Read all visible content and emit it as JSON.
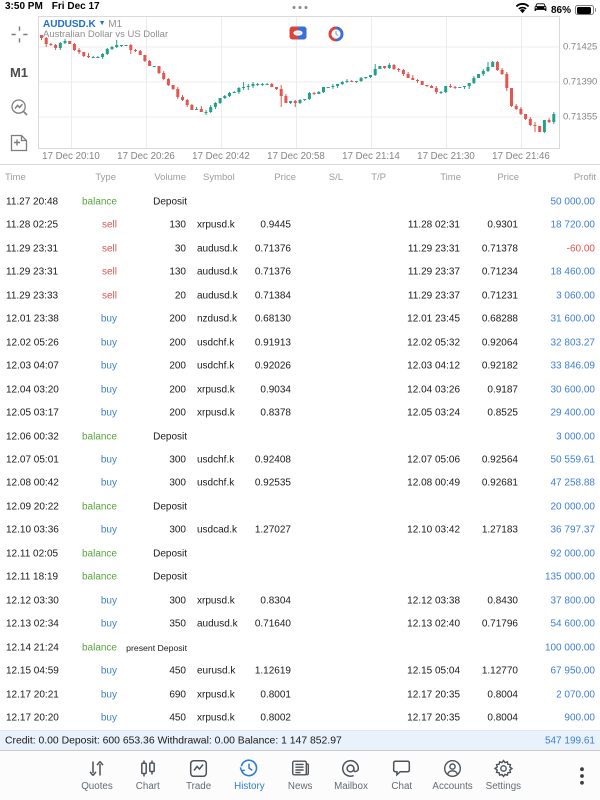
{
  "status_bar": {
    "time": "3:50 PM",
    "date": "Fri Dec 17",
    "battery_percent": "86%",
    "icons": [
      "wifi-icon",
      "carplay-icon",
      "battery-icon"
    ]
  },
  "chart": {
    "symbol": "AUDUSD.K",
    "timeframe": "M1",
    "description": "Australian Dollar vs US Dollar",
    "toolbar": [
      "crosshair-icon",
      "timeframe-M1",
      "indicators-icon",
      "add-object-icon"
    ],
    "accent_up": "#23a08c",
    "accent_down": "#e4554e"
  },
  "chart_data": {
    "type": "candlestick",
    "title": "AUDUSD.K M1",
    "ylabel_ticks": [
      "0.71425",
      "0.71390",
      "0.71355"
    ],
    "y_tick_values": [
      0.71425,
      0.7139,
      0.71355
    ],
    "x_tick_labels": [
      "17 Dec 20:10",
      "17 Dec 20:26",
      "17 Dec 20:42",
      "17 Dec 20:58",
      "17 Dec 21:14",
      "17 Dec 21:30",
      "17 Dec 21:46"
    ],
    "ylim": [
      0.71322,
      0.71456
    ],
    "grid": true,
    "candles_ohlc": [
      [
        0.71437,
        0.71437,
        0.71432,
        0.71434
      ],
      [
        0.71434,
        0.71435,
        0.71425,
        0.71428
      ],
      [
        0.71428,
        0.71429,
        0.71426,
        0.71427
      ],
      [
        0.71427,
        0.71428,
        0.71422,
        0.71424
      ],
      [
        0.71424,
        0.7143,
        0.71422,
        0.71429
      ],
      [
        0.71429,
        0.71433,
        0.71428,
        0.71431
      ],
      [
        0.71431,
        0.71431,
        0.71428,
        0.71428
      ],
      [
        0.71428,
        0.71429,
        0.71421,
        0.71422
      ],
      [
        0.71422,
        0.71424,
        0.71418,
        0.7142
      ],
      [
        0.7142,
        0.7142,
        0.71415,
        0.71416
      ],
      [
        0.71416,
        0.71419,
        0.71414,
        0.71415
      ],
      [
        0.71415,
        0.71416,
        0.71415,
        0.71415
      ],
      [
        0.71415,
        0.71416,
        0.71415,
        0.71415
      ],
      [
        0.71415,
        0.71419,
        0.71413,
        0.71418
      ],
      [
        0.71418,
        0.71424,
        0.71417,
        0.71423
      ],
      [
        0.71423,
        0.71426,
        0.71422,
        0.71425
      ],
      [
        0.71425,
        0.71432,
        0.71424,
        0.71427
      ],
      [
        0.71427,
        0.71427,
        0.71425,
        0.71427
      ],
      [
        0.71427,
        0.71427,
        0.71426,
        0.71427
      ],
      [
        0.71427,
        0.71428,
        0.71418,
        0.71422
      ],
      [
        0.71422,
        0.71423,
        0.7142,
        0.71421
      ],
      [
        0.71421,
        0.71422,
        0.71417,
        0.71417
      ],
      [
        0.71417,
        0.71417,
        0.7141,
        0.71411
      ],
      [
        0.71411,
        0.71412,
        0.71406,
        0.71406
      ],
      [
        0.71406,
        0.71406,
        0.71405,
        0.71406
      ],
      [
        0.71406,
        0.71406,
        0.71398,
        0.71399
      ],
      [
        0.71399,
        0.71401,
        0.71392,
        0.71393
      ],
      [
        0.71393,
        0.71394,
        0.71386,
        0.71387
      ],
      [
        0.71387,
        0.71387,
        0.71382,
        0.71383
      ],
      [
        0.71383,
        0.71385,
        0.71373,
        0.71375
      ],
      [
        0.71375,
        0.71377,
        0.71371,
        0.71372
      ],
      [
        0.71372,
        0.71373,
        0.71365,
        0.71367
      ],
      [
        0.71367,
        0.71368,
        0.71362,
        0.71362
      ],
      [
        0.71362,
        0.71365,
        0.71362,
        0.71363
      ],
      [
        0.71363,
        0.71366,
        0.7136,
        0.7136
      ],
      [
        0.7136,
        0.71362,
        0.71357,
        0.7136
      ],
      [
        0.7136,
        0.71367,
        0.71359,
        0.71365
      ],
      [
        0.71365,
        0.7137,
        0.71363,
        0.71369
      ],
      [
        0.71369,
        0.71374,
        0.71368,
        0.71374
      ],
      [
        0.71374,
        0.71377,
        0.71373,
        0.71376
      ],
      [
        0.71376,
        0.7138,
        0.71375,
        0.71379
      ],
      [
        0.71379,
        0.71381,
        0.71379,
        0.7138
      ],
      [
        0.7138,
        0.71385,
        0.71378,
        0.71384
      ],
      [
        0.71384,
        0.7139,
        0.71382,
        0.71385
      ],
      [
        0.71385,
        0.71388,
        0.71382,
        0.71386
      ],
      [
        0.71386,
        0.7139,
        0.71384,
        0.71388
      ],
      [
        0.71388,
        0.71389,
        0.71386,
        0.71388
      ],
      [
        0.71388,
        0.71389,
        0.71386,
        0.71388
      ],
      [
        0.71388,
        0.71389,
        0.71387,
        0.71388
      ],
      [
        0.71388,
        0.71389,
        0.71385,
        0.71385
      ],
      [
        0.71385,
        0.71385,
        0.71382,
        0.71383
      ],
      [
        0.71383,
        0.71387,
        0.71365,
        0.71376
      ],
      [
        0.71376,
        0.71378,
        0.71369,
        0.71369
      ],
      [
        0.71369,
        0.71371,
        0.71368,
        0.71371
      ],
      [
        0.71371,
        0.71372,
        0.71365,
        0.71369
      ],
      [
        0.71369,
        0.71373,
        0.71368,
        0.71372
      ],
      [
        0.71372,
        0.71373,
        0.71371,
        0.71373
      ],
      [
        0.71373,
        0.7138,
        0.71372,
        0.71379
      ],
      [
        0.71379,
        0.7138,
        0.71377,
        0.71378
      ],
      [
        0.71378,
        0.71381,
        0.71378,
        0.7138
      ],
      [
        0.7138,
        0.71385,
        0.71379,
        0.71385
      ],
      [
        0.71385,
        0.71385,
        0.71384,
        0.71385
      ],
      [
        0.71385,
        0.71388,
        0.71383,
        0.71386
      ],
      [
        0.71386,
        0.71388,
        0.71384,
        0.71388
      ],
      [
        0.71388,
        0.71391,
        0.71387,
        0.7139
      ],
      [
        0.7139,
        0.71393,
        0.71389,
        0.71391
      ],
      [
        0.71391,
        0.71392,
        0.7139,
        0.7139
      ],
      [
        0.7139,
        0.71391,
        0.71389,
        0.71391
      ],
      [
        0.71391,
        0.71395,
        0.7139,
        0.71394
      ],
      [
        0.71394,
        0.71395,
        0.71393,
        0.71395
      ],
      [
        0.71395,
        0.71397,
        0.71394,
        0.71397
      ],
      [
        0.71397,
        0.71408,
        0.71396,
        0.71403
      ],
      [
        0.71403,
        0.71406,
        0.71403,
        0.71406
      ],
      [
        0.71406,
        0.71406,
        0.71403,
        0.71404
      ],
      [
        0.71404,
        0.71409,
        0.71403,
        0.71407
      ],
      [
        0.71407,
        0.71408,
        0.71402,
        0.71403
      ],
      [
        0.71403,
        0.71404,
        0.714,
        0.71402
      ],
      [
        0.71402,
        0.71403,
        0.71396,
        0.71398
      ],
      [
        0.71398,
        0.714,
        0.71394,
        0.71394
      ],
      [
        0.71394,
        0.71397,
        0.71392,
        0.71392
      ],
      [
        0.71392,
        0.71393,
        0.71389,
        0.71391
      ],
      [
        0.71391,
        0.71391,
        0.71387,
        0.71387
      ],
      [
        0.71387,
        0.71387,
        0.71385,
        0.71386
      ],
      [
        0.71386,
        0.71387,
        0.71384,
        0.71384
      ],
      [
        0.71384,
        0.71386,
        0.71378,
        0.7138
      ],
      [
        0.7138,
        0.71381,
        0.71378,
        0.7138
      ],
      [
        0.7138,
        0.71386,
        0.71379,
        0.71386
      ],
      [
        0.71386,
        0.71388,
        0.71384,
        0.71385
      ],
      [
        0.71385,
        0.71386,
        0.71383,
        0.71384
      ],
      [
        0.71384,
        0.71385,
        0.71384,
        0.71385
      ],
      [
        0.71385,
        0.71386,
        0.71383,
        0.71386
      ],
      [
        0.71386,
        0.71389,
        0.71383,
        0.71389
      ],
      [
        0.71389,
        0.71396,
        0.71388,
        0.71394
      ],
      [
        0.71394,
        0.71398,
        0.71394,
        0.71398
      ],
      [
        0.71398,
        0.71403,
        0.71396,
        0.71401
      ],
      [
        0.71401,
        0.7141,
        0.714,
        0.71405
      ],
      [
        0.71405,
        0.71411,
        0.71405,
        0.7141
      ],
      [
        0.7141,
        0.71411,
        0.71401,
        0.71402
      ],
      [
        0.71402,
        0.71404,
        0.71397,
        0.71398
      ],
      [
        0.71398,
        0.714,
        0.71381,
        0.71384
      ],
      [
        0.71384,
        0.71384,
        0.71365,
        0.71366
      ],
      [
        0.71366,
        0.71368,
        0.71362,
        0.71363
      ],
      [
        0.71363,
        0.71365,
        0.71357,
        0.71358
      ],
      [
        0.71358,
        0.71358,
        0.71352,
        0.71353
      ],
      [
        0.71353,
        0.71355,
        0.71346,
        0.71347
      ],
      [
        0.71347,
        0.7135,
        0.7134,
        0.71346
      ],
      [
        0.71346,
        0.71346,
        0.7134,
        0.7134
      ],
      [
        0.7134,
        0.71352,
        0.71339,
        0.71352
      ],
      [
        0.71352,
        0.71354,
        0.71349,
        0.7135
      ],
      [
        0.7135,
        0.7136,
        0.71348,
        0.71358
      ]
    ]
  },
  "history_table": {
    "columns": [
      "Time",
      "Type",
      "Volume",
      "Symbol",
      "Price",
      "S/L",
      "T/P",
      "Time",
      "Price",
      "Profit"
    ],
    "rows": [
      {
        "open_time": "11.27 20:48",
        "type": "balance",
        "label": "Deposit",
        "profit": "50 000.00"
      },
      {
        "open_time": "11.28 02:25",
        "type": "sell",
        "volume": "130",
        "symbol": "xrpusd.k",
        "open_price": "0.9445",
        "sl": "",
        "tp": "",
        "close_time": "11.28 02:31",
        "close_price": "0.9301",
        "profit": "18 720.00"
      },
      {
        "open_time": "11.29 23:31",
        "type": "sell",
        "volume": "30",
        "symbol": "audusd.k",
        "open_price": "0.71376",
        "sl": "",
        "tp": "",
        "close_time": "11.29 23:31",
        "close_price": "0.71378",
        "profit": "-60.00"
      },
      {
        "open_time": "11.29 23:31",
        "type": "sell",
        "volume": "130",
        "symbol": "audusd.k",
        "open_price": "0.71376",
        "sl": "",
        "tp": "",
        "close_time": "11.29 23:37",
        "close_price": "0.71234",
        "profit": "18 460.00"
      },
      {
        "open_time": "11.29 23:33",
        "type": "sell",
        "volume": "20",
        "symbol": "audusd.k",
        "open_price": "0.71384",
        "sl": "",
        "tp": "",
        "close_time": "11.29 23:37",
        "close_price": "0.71231",
        "profit": "3 060.00"
      },
      {
        "open_time": "12.01 23:38",
        "type": "buy",
        "volume": "200",
        "symbol": "nzdusd.k",
        "open_price": "0.68130",
        "sl": "",
        "tp": "",
        "close_time": "12.01 23:45",
        "close_price": "0.68288",
        "profit": "31 600.00"
      },
      {
        "open_time": "12.02 05:26",
        "type": "buy",
        "volume": "200",
        "symbol": "usdchf.k",
        "open_price": "0.91913",
        "sl": "",
        "tp": "",
        "close_time": "12.02 05:32",
        "close_price": "0.92064",
        "profit": "32 803.27"
      },
      {
        "open_time": "12.03 04:07",
        "type": "buy",
        "volume": "200",
        "symbol": "usdchf.k",
        "open_price": "0.92026",
        "sl": "",
        "tp": "",
        "close_time": "12.03 04:12",
        "close_price": "0.92182",
        "profit": "33 846.09"
      },
      {
        "open_time": "12.04 03:20",
        "type": "buy",
        "volume": "200",
        "symbol": "xrpusd.k",
        "open_price": "0.9034",
        "sl": "",
        "tp": "",
        "close_time": "12.04 03:26",
        "close_price": "0.9187",
        "profit": "30 600.00"
      },
      {
        "open_time": "12.05 03:17",
        "type": "buy",
        "volume": "200",
        "symbol": "xrpusd.k",
        "open_price": "0.8378",
        "sl": "",
        "tp": "",
        "close_time": "12.05 03:24",
        "close_price": "0.8525",
        "profit": "29 400.00"
      },
      {
        "open_time": "12.06 00:32",
        "type": "balance",
        "label": "Deposit",
        "profit": "3 000.00"
      },
      {
        "open_time": "12.07 05:01",
        "type": "buy",
        "volume": "300",
        "symbol": "usdchf.k",
        "open_price": "0.92408",
        "sl": "",
        "tp": "",
        "close_time": "12.07 05:06",
        "close_price": "0.92564",
        "profit": "50 559.61"
      },
      {
        "open_time": "12.08 00:42",
        "type": "buy",
        "volume": "300",
        "symbol": "usdchf.k",
        "open_price": "0.92535",
        "sl": "",
        "tp": "",
        "close_time": "12.08 00:49",
        "close_price": "0.92681",
        "profit": "47 258.88"
      },
      {
        "open_time": "12.09 20:22",
        "type": "balance",
        "label": "Deposit",
        "profit": "20 000.00"
      },
      {
        "open_time": "12.10 03:36",
        "type": "buy",
        "volume": "300",
        "symbol": "usdcad.k",
        "open_price": "1.27027",
        "sl": "",
        "tp": "",
        "close_time": "12.10 03:42",
        "close_price": "1.27183",
        "profit": "36 797.37"
      },
      {
        "open_time": "12.11 02:05",
        "type": "balance",
        "label": "Deposit",
        "profit": "92 000.00"
      },
      {
        "open_time": "12.11 18:19",
        "type": "balance",
        "label": "Deposit",
        "profit": "135 000.00"
      },
      {
        "open_time": "12.12 03:30",
        "type": "buy",
        "volume": "300",
        "symbol": "xrpusd.k",
        "open_price": "0.8304",
        "sl": "",
        "tp": "",
        "close_time": "12.12 03:38",
        "close_price": "0.8430",
        "profit": "37 800.00"
      },
      {
        "open_time": "12.13 02:34",
        "type": "buy",
        "volume": "350",
        "symbol": "audusd.k",
        "open_price": "0.71640",
        "sl": "",
        "tp": "",
        "close_time": "12.13 02:40",
        "close_price": "0.71796",
        "profit": "54 600.00"
      },
      {
        "open_time": "12.14 21:24",
        "type": "balance",
        "label": "present Deposit",
        "profit": "100 000.00"
      },
      {
        "open_time": "12.15 04:59",
        "type": "buy",
        "volume": "450",
        "symbol": "eurusd.k",
        "open_price": "1.12619",
        "sl": "",
        "tp": "",
        "close_time": "12.15 05:04",
        "close_price": "1.12770",
        "profit": "67 950.00"
      },
      {
        "open_time": "12.17 20:21",
        "type": "buy",
        "volume": "690",
        "symbol": "xrpusd.k",
        "open_price": "0.8001",
        "sl": "",
        "tp": "",
        "close_time": "12.17 20:35",
        "close_price": "0.8004",
        "profit": "2 070.00"
      },
      {
        "open_time": "12.17 20:20",
        "type": "buy",
        "volume": "450",
        "symbol": "xrpusd.k",
        "open_price": "0.8002",
        "sl": "",
        "tp": "",
        "close_time": "12.17 20:35",
        "close_price": "0.8004",
        "profit": "900.00"
      }
    ]
  },
  "summary": {
    "text": "Credit: 0.00 Deposit: 600 653.36 Withdrawal: 0.00 Balance: 1 147 852.97",
    "total_profit": "547 199.61"
  },
  "tab_bar": {
    "tabs": [
      {
        "label": "Quotes",
        "icon": "quotes-icon",
        "active": false
      },
      {
        "label": "Chart",
        "icon": "chart-icon",
        "active": false
      },
      {
        "label": "Trade",
        "icon": "trade-icon",
        "active": false
      },
      {
        "label": "History",
        "icon": "history-icon",
        "active": true
      },
      {
        "label": "News",
        "icon": "news-icon",
        "active": false
      },
      {
        "label": "Mailbox",
        "icon": "mailbox-icon",
        "active": false
      },
      {
        "label": "Chat",
        "icon": "chat-icon",
        "active": false
      },
      {
        "label": "Accounts",
        "icon": "accounts-icon",
        "active": false
      },
      {
        "label": "Settings",
        "icon": "settings-icon",
        "active": false
      }
    ],
    "more_icon": "more-vertical-icon"
  }
}
